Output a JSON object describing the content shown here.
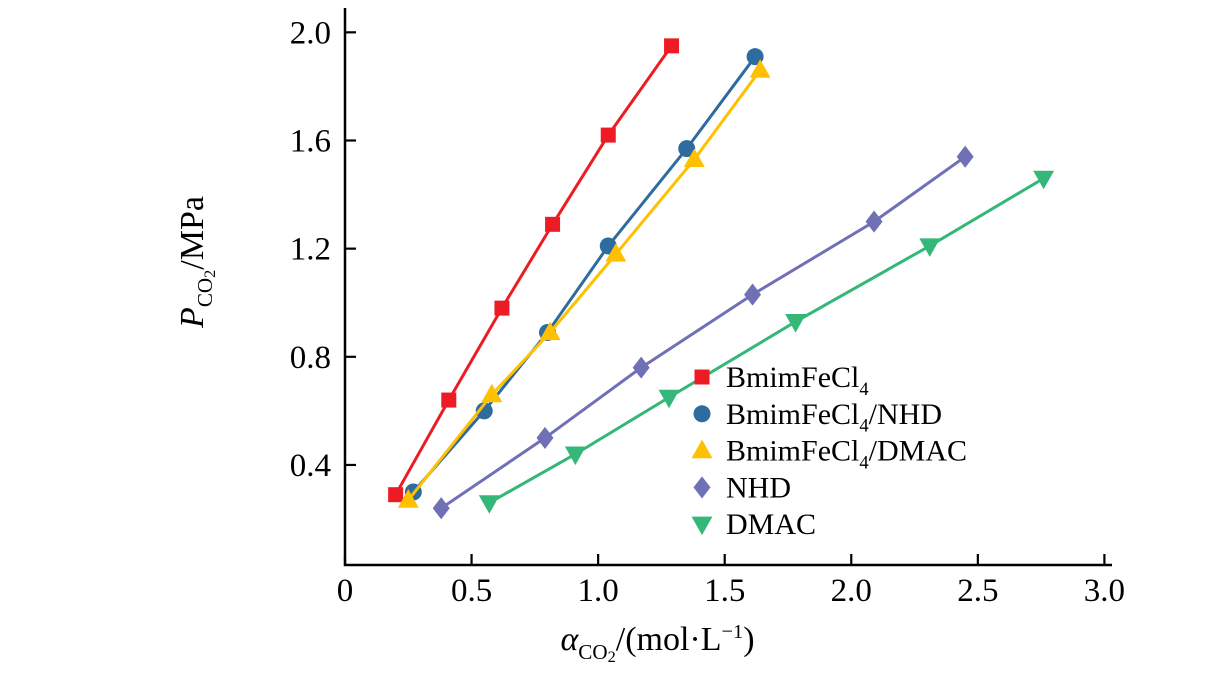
{
  "chart_data": {
    "type": "scatter",
    "title": "",
    "xlabel_parts": [
      {
        "t": "α",
        "style": "italic"
      },
      {
        "t": "CO",
        "style": "sub"
      },
      {
        "t": "2",
        "style": "subsub"
      },
      {
        "t": "/(mol·L",
        "style": "normal"
      },
      {
        "t": "−1",
        "style": "sup"
      },
      {
        "t": ")",
        "style": "normal"
      }
    ],
    "ylabel_parts": [
      {
        "t": "P",
        "style": "italic"
      },
      {
        "t": "CO",
        "style": "sub"
      },
      {
        "t": "2",
        "style": "subsub"
      },
      {
        "t": "/MPa",
        "style": "normal"
      }
    ],
    "xlim": [
      0,
      3.03
    ],
    "ylim": [
      0.03,
      2.09
    ],
    "x_ticks": [
      {
        "v": 0,
        "label": "0"
      },
      {
        "v": 0.5,
        "label": "0.5"
      },
      {
        "v": 1.0,
        "label": "1.0"
      },
      {
        "v": 1.5,
        "label": "1.5"
      },
      {
        "v": 2.0,
        "label": "2.0"
      },
      {
        "v": 2.5,
        "label": "2.5"
      },
      {
        "v": 3.0,
        "label": "3.0"
      }
    ],
    "y_ticks": [
      {
        "v": 0.4,
        "label": "0.4"
      },
      {
        "v": 0.8,
        "label": "0.8"
      },
      {
        "v": 1.2,
        "label": "1.2"
      },
      {
        "v": 1.6,
        "label": "1.6"
      },
      {
        "v": 2.0,
        "label": "2.0"
      }
    ],
    "grid": false,
    "axis_color": "#000000",
    "background_color": "#ffffff",
    "legend_position": "inside lower-right of plot area",
    "series": [
      {
        "id": "BmimFeCl4",
        "marker": "square",
        "color": "#ed1c24",
        "label_parts": [
          {
            "t": "BmimFeCl"
          },
          {
            "t": "4",
            "style": "sub"
          }
        ],
        "points": [
          [
            0.2,
            0.29
          ],
          [
            0.41,
            0.64
          ],
          [
            0.62,
            0.98
          ],
          [
            0.82,
            1.29
          ],
          [
            1.04,
            1.62
          ],
          [
            1.29,
            1.95
          ]
        ]
      },
      {
        "id": "BmimFeCl4-NHD",
        "marker": "circle",
        "color": "#2e6b9e",
        "label_parts": [
          {
            "t": "BmimFeCl"
          },
          {
            "t": "4",
            "style": "sub"
          },
          {
            "t": "/NHD"
          }
        ],
        "points": [
          [
            0.27,
            0.3
          ],
          [
            0.55,
            0.6
          ],
          [
            0.8,
            0.89
          ],
          [
            1.04,
            1.21
          ],
          [
            1.35,
            1.57
          ],
          [
            1.62,
            1.91
          ]
        ]
      },
      {
        "id": "BmimFeCl4-DMAC",
        "marker": "triangle-up",
        "color": "#ffc000",
        "label_parts": [
          {
            "t": "BmimFeCl"
          },
          {
            "t": "4",
            "style": "sub"
          },
          {
            "t": "/DMAC"
          }
        ],
        "points": [
          [
            0.25,
            0.27
          ],
          [
            0.58,
            0.66
          ],
          [
            0.81,
            0.89
          ],
          [
            1.07,
            1.18
          ],
          [
            1.38,
            1.53
          ],
          [
            1.64,
            1.86
          ]
        ]
      },
      {
        "id": "NHD",
        "marker": "diamond",
        "color": "#6f70b5",
        "label_parts": [
          {
            "t": "NHD"
          }
        ],
        "points": [
          [
            0.38,
            0.24
          ],
          [
            0.79,
            0.5
          ],
          [
            1.17,
            0.76
          ],
          [
            1.61,
            1.03
          ],
          [
            2.09,
            1.3
          ],
          [
            2.45,
            1.54
          ]
        ]
      },
      {
        "id": "DMAC",
        "marker": "triangle-down",
        "color": "#34b778",
        "label_parts": [
          {
            "t": "DMAC"
          }
        ],
        "points": [
          [
            0.57,
            0.26
          ],
          [
            0.91,
            0.44
          ],
          [
            1.28,
            0.65
          ],
          [
            1.78,
            0.93
          ],
          [
            2.31,
            1.21
          ],
          [
            2.76,
            1.46
          ]
        ]
      }
    ]
  }
}
